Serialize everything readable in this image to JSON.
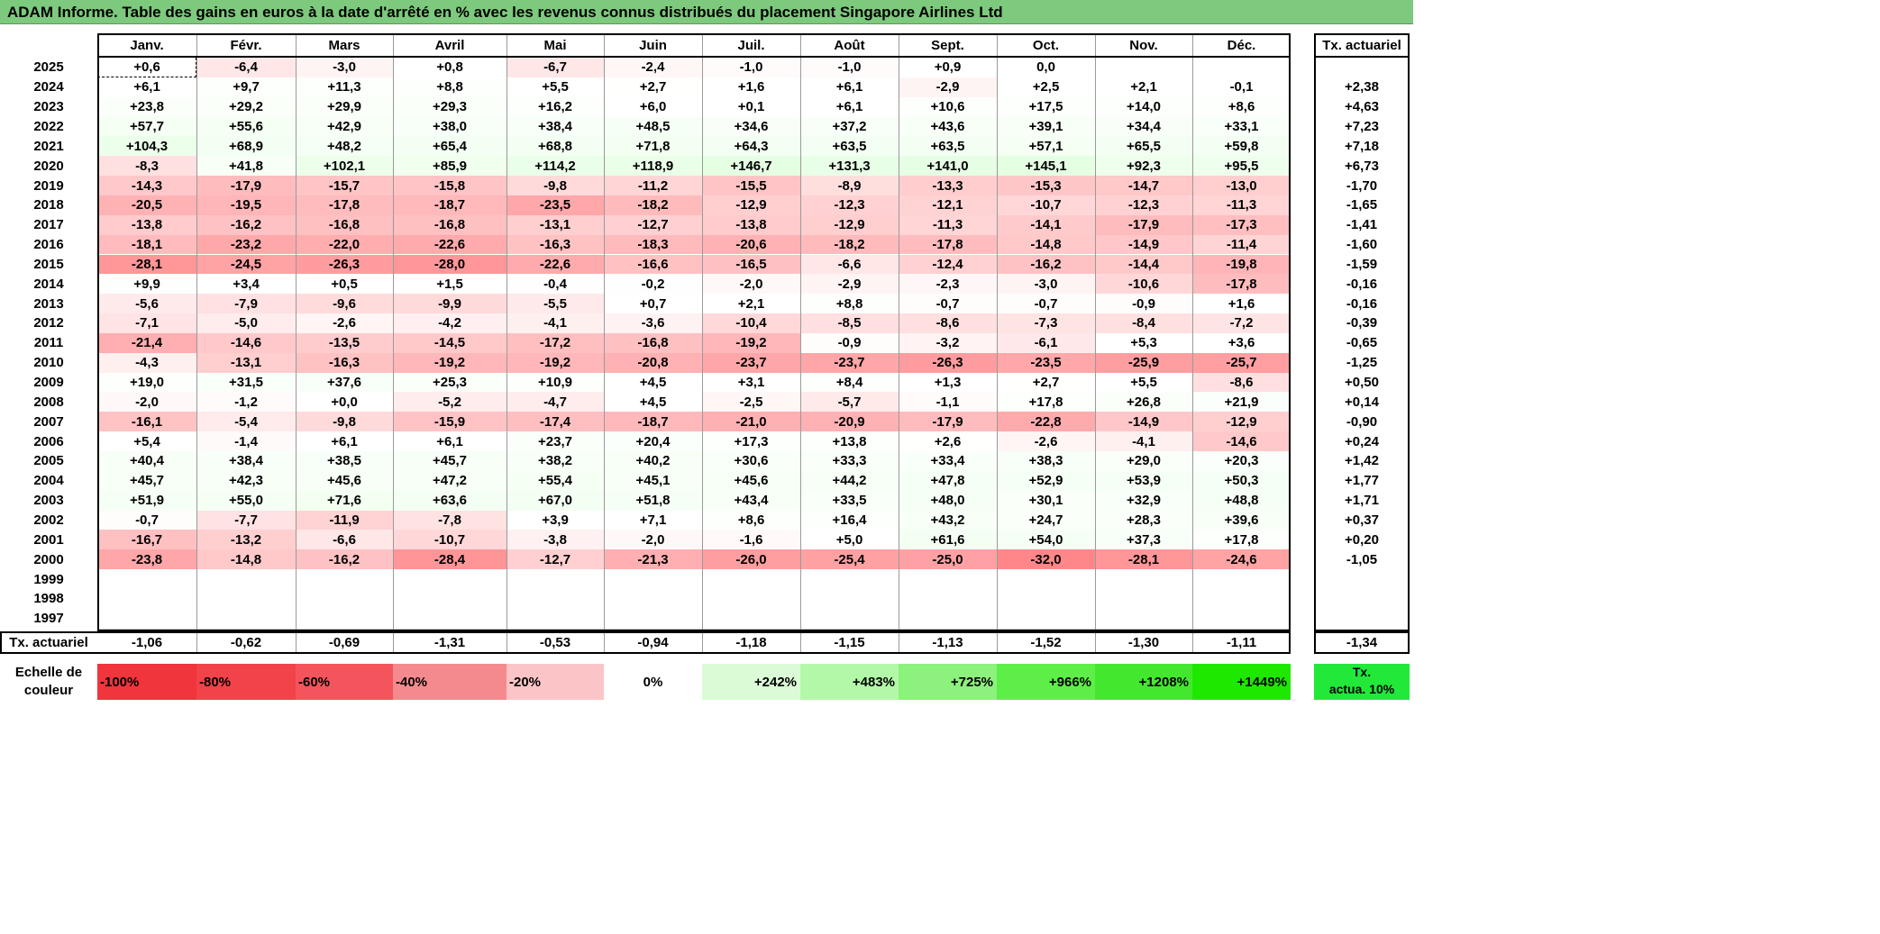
{
  "title": "ADAM Informe. Table des gains en euros à la date d'arrêté en % avec les revenus connus distribués du placement Singapore Airlines Ltd",
  "months": [
    "Janv.",
    "Févr.",
    "Mars",
    "Avril",
    "Mai",
    "Juin",
    "Juil.",
    "Août",
    "Sept.",
    "Oct.",
    "Nov.",
    "Déc."
  ],
  "tx_header": "Tx. actuariel",
  "rows": [
    {
      "year": "2025",
      "values": [
        "+0,6",
        "-6,4",
        "-3,0",
        "+0,8",
        "-6,7",
        "-2,4",
        "-1,0",
        "-1,0",
        "+0,9",
        "0,0",
        "",
        ""
      ],
      "tx": ""
    },
    {
      "year": "2024",
      "values": [
        "+6,1",
        "+9,7",
        "+11,3",
        "+8,8",
        "+5,5",
        "+2,7",
        "+1,6",
        "+6,1",
        "-2,9",
        "+2,5",
        "+2,1",
        "-0,1"
      ],
      "tx": "+2,38"
    },
    {
      "year": "2023",
      "values": [
        "+23,8",
        "+29,2",
        "+29,9",
        "+29,3",
        "+16,2",
        "+6,0",
        "+0,1",
        "+6,1",
        "+10,6",
        "+17,5",
        "+14,0",
        "+8,6"
      ],
      "tx": "+4,63"
    },
    {
      "year": "2022",
      "values": [
        "+57,7",
        "+55,6",
        "+42,9",
        "+38,0",
        "+38,4",
        "+48,5",
        "+34,6",
        "+37,2",
        "+43,6",
        "+39,1",
        "+34,4",
        "+33,1"
      ],
      "tx": "+7,23"
    },
    {
      "year": "2021",
      "values": [
        "+104,3",
        "+68,9",
        "+48,2",
        "+65,4",
        "+68,8",
        "+71,8",
        "+64,3",
        "+63,5",
        "+63,5",
        "+57,1",
        "+65,5",
        "+59,8"
      ],
      "tx": "+7,18"
    },
    {
      "year": "2020",
      "values": [
        "-8,3",
        "+41,8",
        "+102,1",
        "+85,9",
        "+114,2",
        "+118,9",
        "+146,7",
        "+131,3",
        "+141,0",
        "+145,1",
        "+92,3",
        "+95,5"
      ],
      "tx": "+6,73"
    },
    {
      "year": "2019",
      "values": [
        "-14,3",
        "-17,9",
        "-15,7",
        "-15,8",
        "-9,8",
        "-11,2",
        "-15,5",
        "-8,9",
        "-13,3",
        "-15,3",
        "-14,7",
        "-13,0"
      ],
      "tx": "-1,70"
    },
    {
      "year": "2018",
      "values": [
        "-20,5",
        "-19,5",
        "-17,8",
        "-18,7",
        "-23,5",
        "-18,2",
        "-12,9",
        "-12,3",
        "-12,1",
        "-10,7",
        "-12,3",
        "-11,3"
      ],
      "tx": "-1,65"
    },
    {
      "year": "2017",
      "values": [
        "-13,8",
        "-16,2",
        "-16,8",
        "-16,8",
        "-13,1",
        "-12,7",
        "-13,8",
        "-12,9",
        "-11,3",
        "-14,1",
        "-17,9",
        "-17,3"
      ],
      "tx": "-1,41"
    },
    {
      "year": "2016",
      "values": [
        "-18,1",
        "-23,2",
        "-22,0",
        "-22,6",
        "-16,3",
        "-18,3",
        "-20,6",
        "-18,2",
        "-17,8",
        "-14,8",
        "-14,9",
        "-11,4"
      ],
      "tx": "-1,60"
    },
    {
      "year": "2015",
      "values": [
        "-28,1",
        "-24,5",
        "-26,3",
        "-28,0",
        "-22,6",
        "-16,6",
        "-16,5",
        "-6,6",
        "-12,4",
        "-16,2",
        "-14,4",
        "-19,8"
      ],
      "tx": "-1,59"
    },
    {
      "year": "2014",
      "values": [
        "+9,9",
        "+3,4",
        "+0,5",
        "+1,5",
        "-0,4",
        "-0,2",
        "-2,0",
        "-2,9",
        "-2,3",
        "-3,0",
        "-10,6",
        "-17,8"
      ],
      "tx": "-0,16"
    },
    {
      "year": "2013",
      "values": [
        "-5,6",
        "-7,9",
        "-9,6",
        "-9,9",
        "-5,5",
        "+0,7",
        "+2,1",
        "+8,8",
        "-0,7",
        "-0,7",
        "-0,9",
        "+1,6"
      ],
      "tx": "-0,16"
    },
    {
      "year": "2012",
      "values": [
        "-7,1",
        "-5,0",
        "-2,6",
        "-4,2",
        "-4,1",
        "-3,6",
        "-10,4",
        "-8,5",
        "-8,6",
        "-7,3",
        "-8,4",
        "-7,2"
      ],
      "tx": "-0,39"
    },
    {
      "year": "2011",
      "values": [
        "-21,4",
        "-14,6",
        "-13,5",
        "-14,5",
        "-17,2",
        "-16,8",
        "-19,2",
        "-0,9",
        "-3,2",
        "-6,1",
        "+5,3",
        "+3,6"
      ],
      "tx": "-0,65"
    },
    {
      "year": "2010",
      "values": [
        "-4,3",
        "-13,1",
        "-16,3",
        "-19,2",
        "-19,2",
        "-20,8",
        "-23,7",
        "-23,7",
        "-26,3",
        "-23,5",
        "-25,9",
        "-25,7"
      ],
      "tx": "-1,25"
    },
    {
      "year": "2009",
      "values": [
        "+19,0",
        "+31,5",
        "+37,6",
        "+25,3",
        "+10,9",
        "+4,5",
        "+3,1",
        "+8,4",
        "+1,3",
        "+2,7",
        "+5,5",
        "-8,6"
      ],
      "tx": "+0,50"
    },
    {
      "year": "2008",
      "values": [
        "-2,0",
        "-1,2",
        "+0,0",
        "-5,2",
        "-4,7",
        "+4,5",
        "-2,5",
        "-5,7",
        "-1,1",
        "+17,8",
        "+26,8",
        "+21,9"
      ],
      "tx": "+0,14"
    },
    {
      "year": "2007",
      "values": [
        "-16,1",
        "-5,4",
        "-9,8",
        "-15,9",
        "-17,4",
        "-18,7",
        "-21,0",
        "-20,9",
        "-17,9",
        "-22,8",
        "-14,9",
        "-12,9"
      ],
      "tx": "-0,90"
    },
    {
      "year": "2006",
      "values": [
        "+5,4",
        "-1,4",
        "+6,1",
        "+6,1",
        "+23,7",
        "+20,4",
        "+17,3",
        "+13,8",
        "+2,6",
        "-2,6",
        "-4,1",
        "-14,6"
      ],
      "tx": "+0,24"
    },
    {
      "year": "2005",
      "values": [
        "+40,4",
        "+38,4",
        "+38,5",
        "+45,7",
        "+38,2",
        "+40,2",
        "+30,6",
        "+33,3",
        "+33,4",
        "+38,3",
        "+29,0",
        "+20,3"
      ],
      "tx": "+1,42"
    },
    {
      "year": "2004",
      "values": [
        "+45,7",
        "+42,3",
        "+45,6",
        "+47,2",
        "+55,4",
        "+45,1",
        "+45,6",
        "+44,2",
        "+47,8",
        "+52,9",
        "+53,9",
        "+50,3"
      ],
      "tx": "+1,77"
    },
    {
      "year": "2003",
      "values": [
        "+51,9",
        "+55,0",
        "+71,6",
        "+63,6",
        "+67,0",
        "+51,8",
        "+43,4",
        "+33,5",
        "+48,0",
        "+30,1",
        "+32,9",
        "+48,8"
      ],
      "tx": "+1,71"
    },
    {
      "year": "2002",
      "values": [
        "-0,7",
        "-7,7",
        "-11,9",
        "-7,8",
        "+3,9",
        "+7,1",
        "+8,6",
        "+16,4",
        "+43,2",
        "+24,7",
        "+28,3",
        "+39,6"
      ],
      "tx": "+0,37"
    },
    {
      "year": "2001",
      "values": [
        "-16,7",
        "-13,2",
        "-6,6",
        "-10,7",
        "-3,8",
        "-2,0",
        "-1,6",
        "+5,0",
        "+61,6",
        "+54,0",
        "+37,3",
        "+17,8"
      ],
      "tx": "+0,20"
    },
    {
      "year": "2000",
      "values": [
        "-23,8",
        "-14,8",
        "-16,2",
        "-28,4",
        "-12,7",
        "-21,3",
        "-26,0",
        "-25,4",
        "-25,0",
        "-32,0",
        "-28,1",
        "-24,6"
      ],
      "tx": "-1,05"
    },
    {
      "year": "1999",
      "values": [
        "",
        "",
        "",
        "",
        "",
        "",
        "",
        "",
        "",
        "",
        "",
        ""
      ],
      "tx": ""
    },
    {
      "year": "1998",
      "values": [
        "",
        "",
        "",
        "",
        "",
        "",
        "",
        "",
        "",
        "",
        "",
        ""
      ],
      "tx": ""
    },
    {
      "year": "1997",
      "values": [
        "",
        "",
        "",
        "",
        "",
        "",
        "",
        "",
        "",
        "",
        "",
        ""
      ],
      "tx": ""
    }
  ],
  "footer": {
    "label": "Tx. actuariel",
    "values": [
      "-1,06",
      "-0,62",
      "-0,69",
      "-1,31",
      "-0,53",
      "-0,94",
      "-1,18",
      "-1,15",
      "-1,13",
      "-1,52",
      "-1,30",
      "-1,11"
    ],
    "tx": "-1,34"
  },
  "scale": {
    "label_line1": "Echelle de",
    "label_line2": "couleur",
    "items": [
      {
        "text": "-100%",
        "color": "#f0353c"
      },
      {
        "text": "-80%",
        "color": "#f2424a"
      },
      {
        "text": "-60%",
        "color": "#f4545b"
      },
      {
        "text": "-40%",
        "color": "#f58a8e"
      },
      {
        "text": "-20%",
        "color": "#fbc4c6"
      },
      {
        "text": "0%",
        "color": "#ffffff"
      },
      {
        "text": "+242%",
        "color": "#dbfbd7"
      },
      {
        "text": "+483%",
        "color": "#b3f8a8"
      },
      {
        "text": "+725%",
        "color": "#8df17d"
      },
      {
        "text": "+966%",
        "color": "#5eee48"
      },
      {
        "text": "+1208%",
        "color": "#43e82e"
      },
      {
        "text": "+1449%",
        "color": "#1fe800"
      }
    ],
    "tx_line1": "Tx.",
    "tx_line2": "actua. 10%",
    "tx_color": "#22e83a"
  }
}
